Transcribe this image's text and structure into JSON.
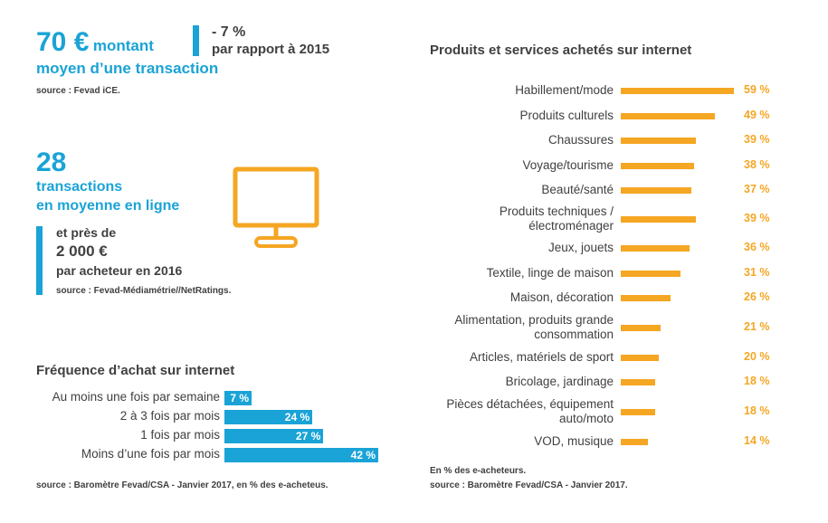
{
  "stat1": {
    "big": "70 €",
    "text1": "montant",
    "text2": "moyen d’une transaction",
    "change": "- 7 %",
    "change_note": "par rapport à 2015",
    "source": "source : Fevad iCE."
  },
  "stat2": {
    "big": "28",
    "text1": "transactions",
    "text2": "en moyenne en ligne",
    "pre": "et près de",
    "amount": "2 000 €",
    "post": "par acheteur en 2016",
    "source": "source : Fevad-Médiamétrie//NetRatings."
  },
  "icons": {
    "monitor": "monitor-icon"
  },
  "colors": {
    "blue": "#1aa3d6",
    "orange": "#f5a623",
    "text": "#404040"
  },
  "freq_footer": "source : Baromètre Fevad/CSA - Janvier 2017, en % des e-acheteus.",
  "prod_footer1": "En % des e-acheteurs.",
  "prod_footer2": "source : Baromètre Fevad/CSA - Janvier 2017.",
  "chart_data": [
    {
      "type": "bar",
      "orientation": "horizontal",
      "title": "Fréquence d’achat sur internet",
      "categories": [
        "Au moins une fois par semaine",
        "2 à 3 fois par mois",
        "1 fois par mois",
        "Moins d’une fois par mois"
      ],
      "values": [
        7,
        24,
        27,
        42
      ],
      "value_labels": [
        "7 %",
        "24 %",
        "27 %",
        "42 %"
      ],
      "unit": "%"
    },
    {
      "type": "bar",
      "orientation": "horizontal",
      "title": "Produits et services achetés sur internet",
      "categories": [
        [
          "Habillement/mode"
        ],
        [
          "Produits culturels"
        ],
        [
          "Chaussures"
        ],
        [
          "Voyage/tourisme"
        ],
        [
          "Beauté/santé"
        ],
        [
          "Produits techniques /",
          "électroménager"
        ],
        [
          "Jeux, jouets"
        ],
        [
          "Textile, linge de maison"
        ],
        [
          "Maison, décoration"
        ],
        [
          "Alimentation, produits grande",
          "consommation"
        ],
        [
          "Articles, matériels de sport"
        ],
        [
          "Bricolage, jardinage"
        ],
        [
          "Pièces détachées, équipement",
          "auto/moto"
        ],
        [
          "VOD, musique"
        ]
      ],
      "values": [
        59,
        49,
        39,
        38,
        37,
        39,
        36,
        31,
        26,
        21,
        20,
        18,
        18,
        14
      ],
      "value_labels": [
        "59 %",
        "49 %",
        "39 %",
        "38 %",
        "37 %",
        "39 %",
        "36 %",
        "31 %",
        "26 %",
        "21 %",
        "20 %",
        "18 %",
        "18 %",
        "14 %"
      ],
      "unit": "%"
    }
  ]
}
